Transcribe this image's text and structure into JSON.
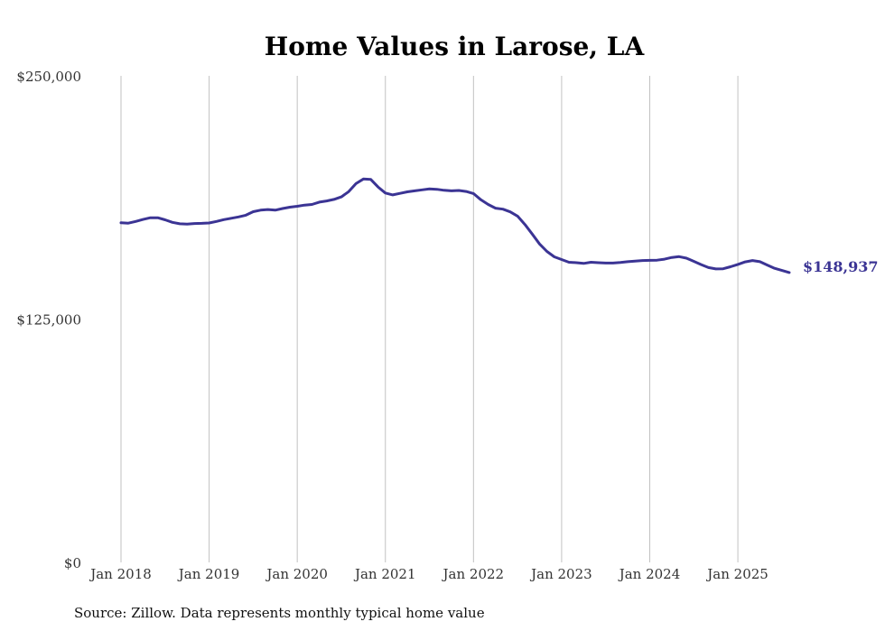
{
  "chart_data": {
    "type": "line",
    "title": "Home Values in Larose, LA",
    "xlabel": "",
    "ylabel": "",
    "ylim": [
      0,
      250000
    ],
    "y_ticks": [
      {
        "value": 0,
        "label": "$0"
      },
      {
        "value": 125000,
        "label": "$125,000"
      },
      {
        "value": 250000,
        "label": "$250,000"
      }
    ],
    "x_ticks": [
      {
        "value": "2018-01",
        "label": "Jan 2018"
      },
      {
        "value": "2019-01",
        "label": "Jan 2019"
      },
      {
        "value": "2020-01",
        "label": "Jan 2020"
      },
      {
        "value": "2021-01",
        "label": "Jan 2021"
      },
      {
        "value": "2022-01",
        "label": "Jan 2022"
      },
      {
        "value": "2023-01",
        "label": "Jan 2023"
      },
      {
        "value": "2024-01",
        "label": "Jan 2024"
      },
      {
        "value": "2025-01",
        "label": "Jan 2025"
      }
    ],
    "grid": "vertical",
    "legend": "none",
    "line_color": "#3b3494",
    "end_label": "$148,937",
    "series": [
      {
        "x": [
          "2018-01",
          "2018-02",
          "2018-03",
          "2018-04",
          "2018-05",
          "2018-06",
          "2018-07",
          "2018-08",
          "2018-09",
          "2018-10",
          "2018-11",
          "2018-12",
          "2019-01",
          "2019-02",
          "2019-03",
          "2019-04",
          "2019-05",
          "2019-06",
          "2019-07",
          "2019-08",
          "2019-09",
          "2019-10",
          "2019-11",
          "2019-12",
          "2020-01",
          "2020-02",
          "2020-03",
          "2020-04",
          "2020-05",
          "2020-06",
          "2020-07",
          "2020-08",
          "2020-09",
          "2020-10",
          "2020-11",
          "2020-12",
          "2021-01",
          "2021-02",
          "2021-03",
          "2021-04",
          "2021-05",
          "2021-06",
          "2021-07",
          "2021-08",
          "2021-09",
          "2021-10",
          "2021-11",
          "2021-12",
          "2022-01",
          "2022-02",
          "2022-03",
          "2022-04",
          "2022-05",
          "2022-06",
          "2022-07",
          "2022-08",
          "2022-09",
          "2022-10",
          "2022-11",
          "2022-12",
          "2023-01",
          "2023-02",
          "2023-03",
          "2023-04",
          "2023-05",
          "2023-06",
          "2023-07",
          "2023-08",
          "2023-09",
          "2023-10",
          "2023-11",
          "2023-12",
          "2024-01",
          "2024-02",
          "2024-03",
          "2024-04",
          "2024-05",
          "2024-06",
          "2024-07",
          "2024-08",
          "2024-09",
          "2024-10",
          "2024-11",
          "2024-12",
          "2025-01",
          "2025-02",
          "2025-03",
          "2025-04",
          "2025-05",
          "2025-06",
          "2025-07",
          "2025-08"
        ],
        "values": [
          174500,
          174300,
          175200,
          176200,
          177100,
          177100,
          176000,
          174700,
          174000,
          173800,
          174100,
          174200,
          174400,
          175200,
          176100,
          176800,
          177500,
          178400,
          180200,
          181000,
          181300,
          181000,
          181800,
          182500,
          183000,
          183600,
          183900,
          185100,
          185700,
          186500,
          187800,
          190500,
          194600,
          197000,
          196800,
          192900,
          189800,
          188800,
          189600,
          190400,
          190900,
          191400,
          191900,
          191700,
          191200,
          190900,
          191100,
          190600,
          189500,
          186300,
          183900,
          182000,
          181500,
          180100,
          177900,
          173600,
          168700,
          163600,
          159800,
          157000,
          155600,
          154200,
          154000,
          153600,
          154200,
          154000,
          153800,
          153800,
          154100,
          154500,
          154800,
          155100,
          155200,
          155300,
          155800,
          156700,
          157100,
          156300,
          154700,
          153000,
          151500,
          150800,
          150900,
          151900,
          153100,
          154400,
          155100,
          154500,
          152800,
          151100,
          150000,
          148937
        ]
      }
    ]
  },
  "footer": {
    "source": "Source: Zillow. Data represents monthly typical home value"
  }
}
